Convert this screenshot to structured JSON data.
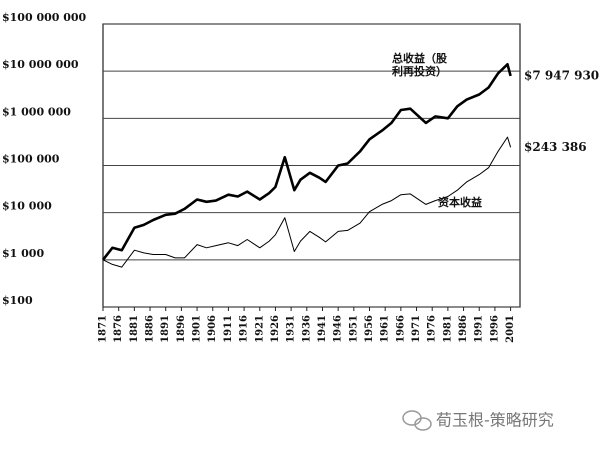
{
  "chart_data": {
    "type": "line",
    "log_scale": true,
    "grid": true,
    "x": [
      1871,
      1874,
      1877,
      1881,
      1884,
      1887,
      1891,
      1894,
      1897,
      1901,
      1904,
      1907,
      1911,
      1914,
      1917,
      1921,
      1924,
      1926,
      1929,
      1932,
      1934,
      1937,
      1940,
      1942,
      1946,
      1949,
      1953,
      1956,
      1960,
      1963,
      1966,
      1969,
      1974,
      1977,
      1981,
      1984,
      1987,
      1991,
      1994,
      1997,
      2000,
      2001
    ],
    "series": [
      {
        "name": "总收益（股利再投资）",
        "color": "#000000",
        "values": [
          1000,
          1800,
          1600,
          4800,
          5500,
          7000,
          9000,
          9500,
          12000,
          19000,
          17000,
          18000,
          24000,
          22000,
          28000,
          19000,
          26000,
          35000,
          150000,
          30000,
          50000,
          70000,
          55000,
          45000,
          100000,
          110000,
          200000,
          360000,
          550000,
          800000,
          1500000,
          1600000,
          800000,
          1100000,
          1000000,
          1800000,
          2500000,
          3200000,
          4500000,
          9000000,
          14000000,
          7947930
        ],
        "value_labels": [
          null,
          null,
          null,
          null,
          null,
          null,
          null,
          null,
          null,
          null,
          null,
          null,
          null,
          null,
          null,
          null,
          null,
          null,
          null,
          null,
          null,
          null,
          null,
          null,
          null,
          null,
          null,
          null,
          null,
          null,
          null,
          null,
          null,
          null,
          null,
          null,
          null,
          null,
          null,
          null,
          null,
          "$7 947 930"
        ]
      },
      {
        "name": "资本收益",
        "color": "#000000",
        "values": [
          1000,
          800,
          700,
          1600,
          1400,
          1300,
          1300,
          1100,
          1100,
          2100,
          1800,
          2000,
          2300,
          2000,
          2700,
          1800,
          2500,
          3400,
          7800,
          1500,
          2500,
          4000,
          3000,
          2400,
          4000,
          4200,
          6000,
          10500,
          15000,
          18000,
          24000,
          25000,
          15000,
          18000,
          22000,
          30000,
          45000,
          64000,
          90000,
          200000,
          400000,
          243386
        ],
        "value_labels": [
          null,
          null,
          null,
          null,
          null,
          null,
          null,
          null,
          null,
          null,
          null,
          null,
          null,
          null,
          null,
          null,
          null,
          null,
          null,
          null,
          null,
          null,
          null,
          null,
          null,
          null,
          null,
          null,
          null,
          null,
          null,
          null,
          null,
          null,
          null,
          null,
          null,
          null,
          null,
          null,
          null,
          "$243 386"
        ]
      }
    ],
    "xlim": [
      1871,
      2004
    ],
    "xticks": [
      1871,
      1876,
      1881,
      1886,
      1891,
      1896,
      1901,
      1906,
      1911,
      1916,
      1921,
      1926,
      1931,
      1936,
      1941,
      1946,
      1951,
      1956,
      1961,
      1966,
      1971,
      1976,
      1981,
      1986,
      1991,
      1996,
      2001
    ],
    "ylim": [
      100,
      100000000
    ],
    "yticks": [
      {
        "value": 100,
        "label": "$100"
      },
      {
        "value": 1000,
        "label": "$1 000"
      },
      {
        "value": 10000,
        "label": "$10 000"
      },
      {
        "value": 100000,
        "label": "$100 000"
      },
      {
        "value": 1000000,
        "label": "$1 000 000"
      },
      {
        "value": 10000000,
        "label": "$10 000 000"
      },
      {
        "value": 100000000,
        "label": "$100 000 000"
      }
    ]
  },
  "watermark": "荀玉根-策略研究"
}
